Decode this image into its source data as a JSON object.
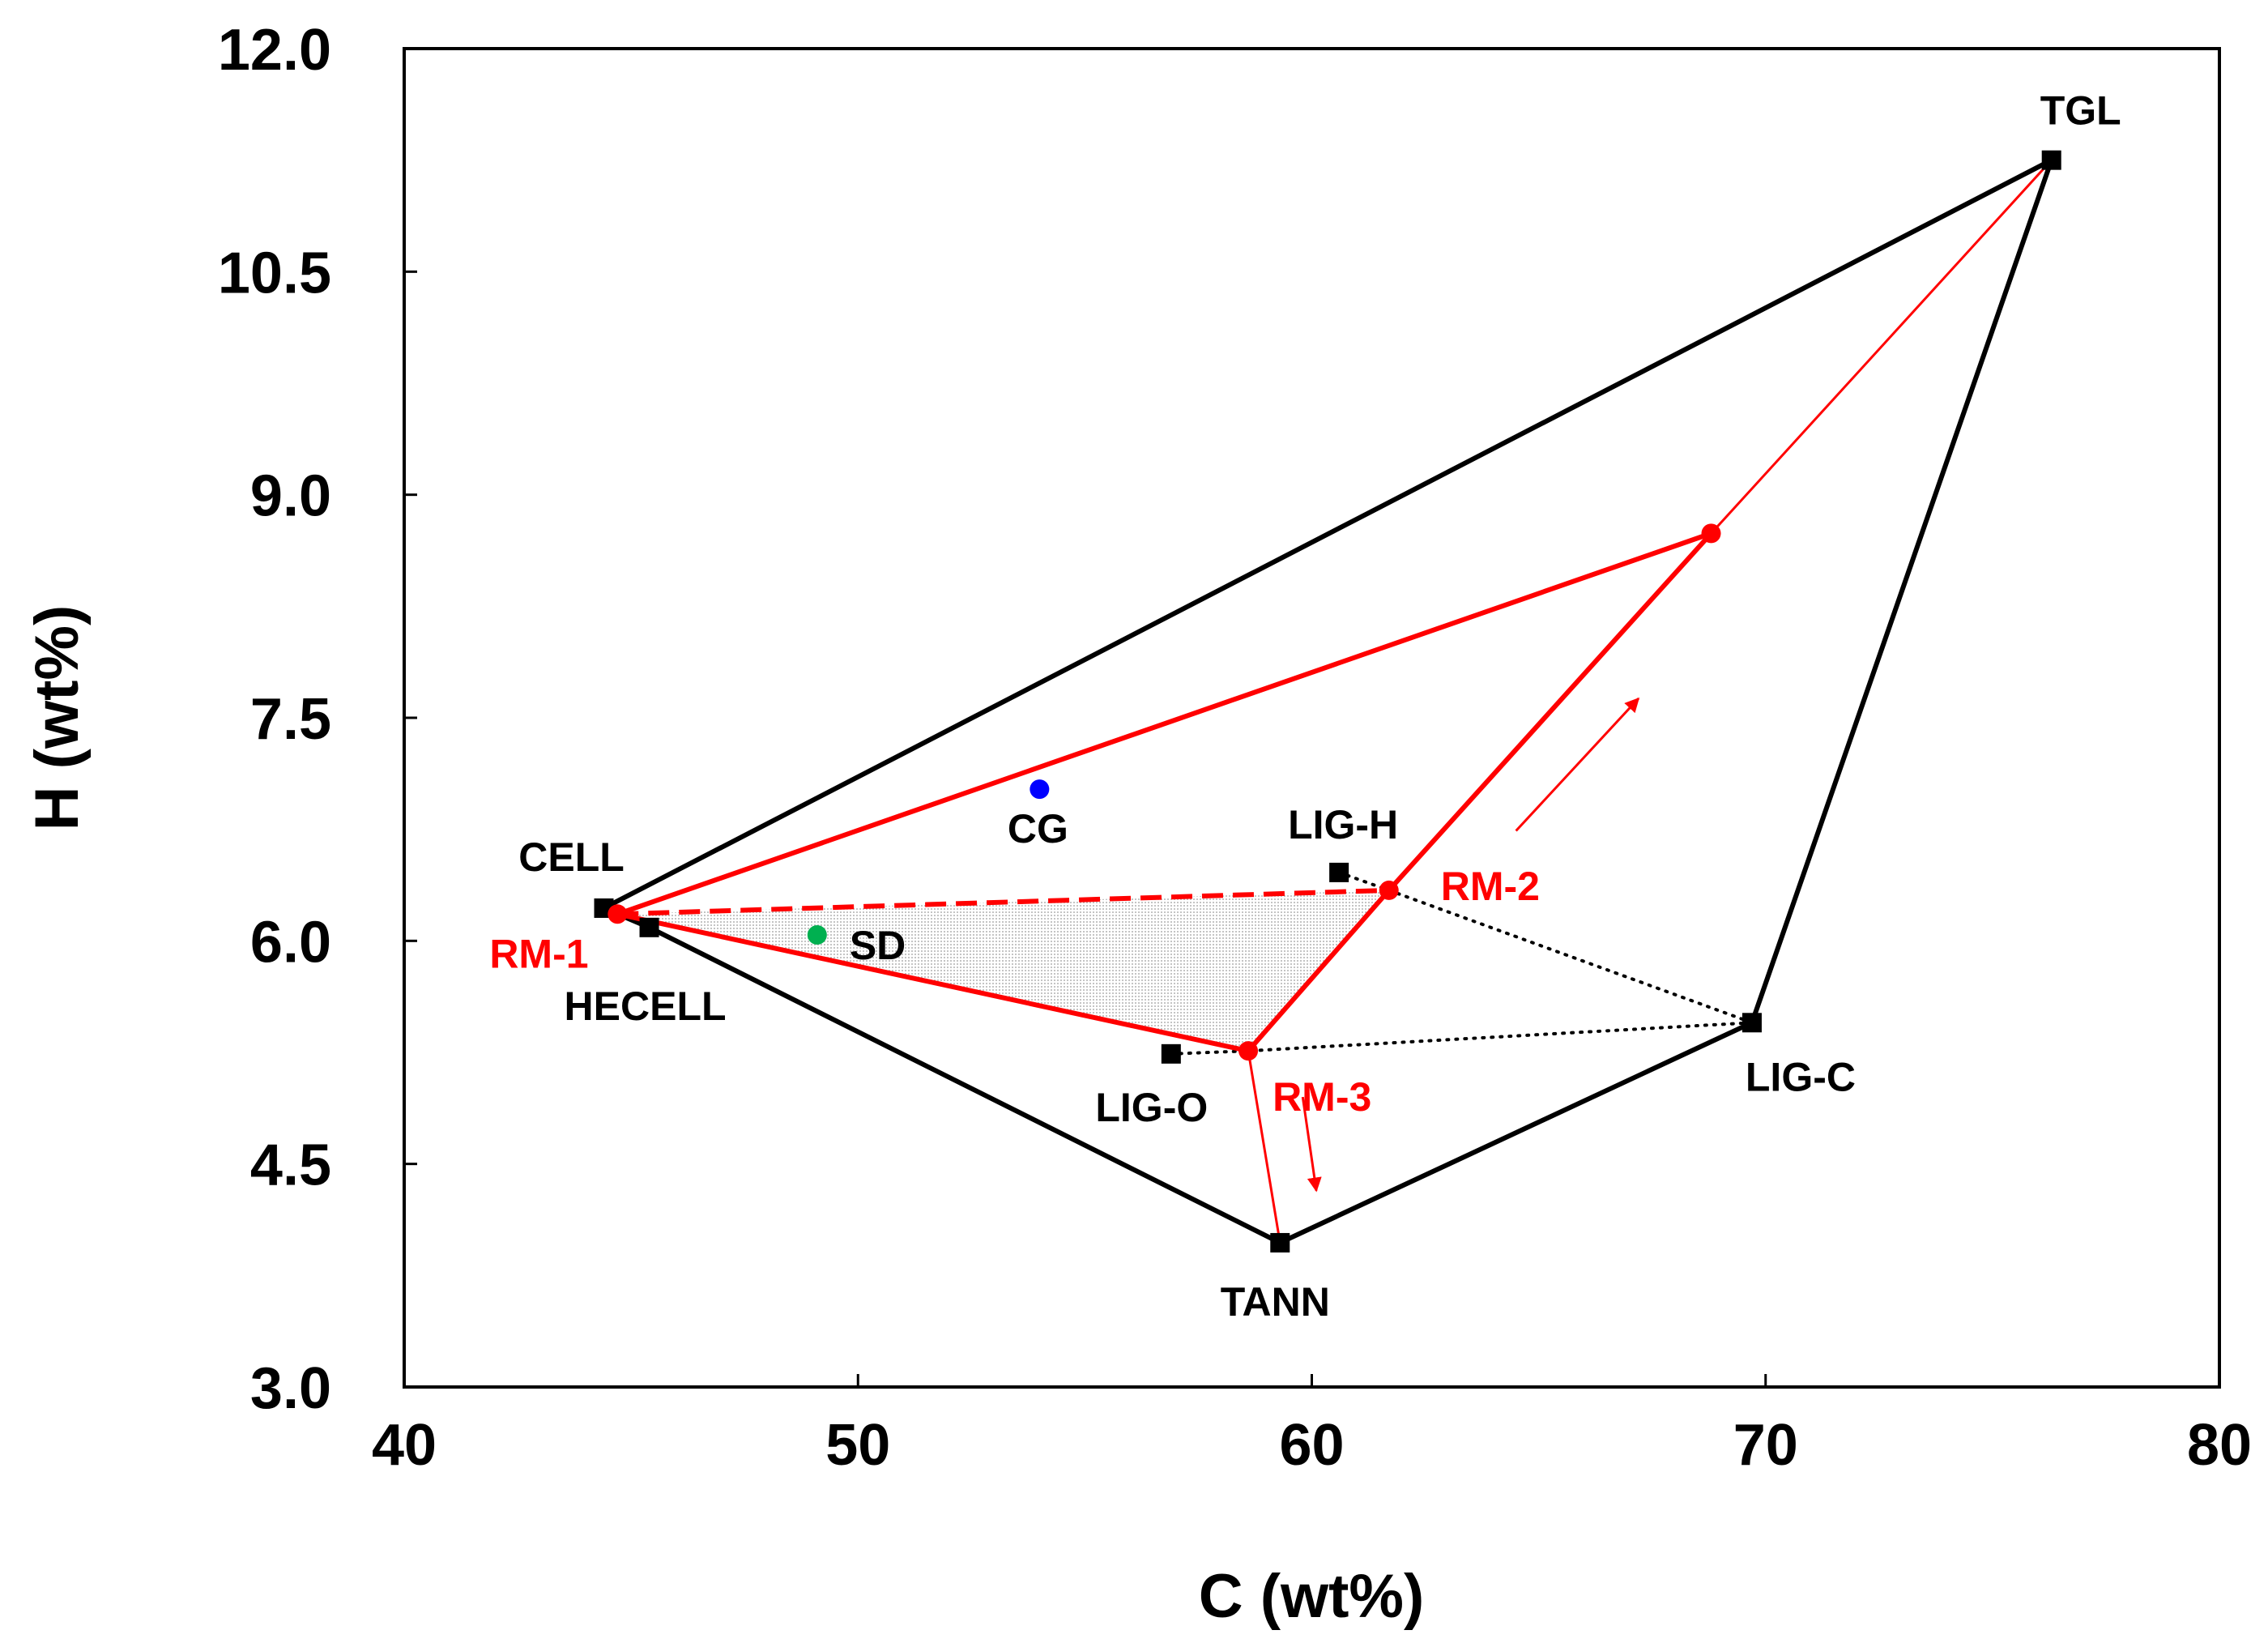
{
  "chart_data": {
    "type": "scatter",
    "title": "",
    "xlabel": "C (wt%)",
    "ylabel": "H (wt%)",
    "xlim": [
      40,
      80
    ],
    "ylim": [
      3.0,
      12.0
    ],
    "xticks": [
      40,
      50,
      60,
      70,
      80
    ],
    "xtick_labels": [
      "40",
      "50",
      "60",
      "70",
      "80"
    ],
    "yticks": [
      3.0,
      4.5,
      6.0,
      7.5,
      9.0,
      10.5,
      12.0
    ],
    "ytick_labels": [
      "3.0",
      "4.5",
      "6.0",
      "7.5",
      "9.0",
      "10.5",
      "12.0"
    ],
    "grid": false,
    "colors": {
      "reference": "#000000",
      "region": "#ff0000",
      "cg": "#0000ff",
      "sd": "#00b050",
      "shade": "#d8d8d8"
    },
    "reference_components": [
      {
        "id": "cell",
        "label": "CELL",
        "x": 44.4,
        "y": 6.22
      },
      {
        "id": "hecell",
        "label": "HECELL",
        "x": 45.4,
        "y": 6.09
      },
      {
        "id": "lig-h",
        "label": "LIG-H",
        "x": 60.6,
        "y": 6.46
      },
      {
        "id": "lig-o",
        "label": "LIG-O",
        "x": 56.9,
        "y": 5.24
      },
      {
        "id": "lig-c",
        "label": "LIG-C",
        "x": 69.7,
        "y": 5.45
      },
      {
        "id": "tann",
        "label": "TANN",
        "x": 59.3,
        "y": 3.97
      },
      {
        "id": "tgl",
        "label": "TGL",
        "x": 76.3,
        "y": 11.25
      }
    ],
    "samples": [
      {
        "id": "cg",
        "label": "CG",
        "x": 54.0,
        "y": 7.02
      },
      {
        "id": "sd",
        "label": "SD",
        "x": 49.1,
        "y": 6.04
      }
    ],
    "reference_mixtures": [
      {
        "id": "rm-1",
        "label": "RM-1",
        "x": 44.7,
        "y": 6.18
      },
      {
        "id": "rm-2",
        "label": "RM-2",
        "x": 61.7,
        "y": 6.34
      },
      {
        "id": "rm-3",
        "label": "RM-3",
        "x": 58.6,
        "y": 5.26
      },
      {
        "id": "rm-top",
        "label": "",
        "x": 68.8,
        "y": 8.74
      }
    ],
    "outer_hull": [
      "cell",
      "tgl",
      "lig-c",
      "tann",
      "hecell",
      "cell"
    ],
    "lignin_dotted_lines": [
      [
        "lig-h",
        "rm-2",
        "lig-c"
      ],
      [
        "lig-o",
        "rm-3",
        "lig-c"
      ]
    ],
    "red_solid_lines": [
      [
        "rm-1",
        "rm-top"
      ],
      [
        "rm-1",
        "rm-3"
      ],
      [
        "rm-3",
        "rm-2"
      ],
      [
        "rm-2",
        "rm-top"
      ]
    ],
    "red_dashed_lines": [
      [
        "rm-1",
        "rm-2"
      ]
    ],
    "red_thin_lines": [
      [
        "rm-top",
        "tgl"
      ],
      [
        "rm-3",
        "tann"
      ]
    ],
    "shaded_region": [
      "rm-1",
      "rm-2",
      "rm-3"
    ],
    "arrows": [
      {
        "from": [
          64.5,
          6.74
        ],
        "to": [
          67.2,
          7.63
        ]
      },
      {
        "from": [
          59.8,
          4.95
        ],
        "to": [
          60.1,
          4.32
        ]
      }
    ]
  }
}
